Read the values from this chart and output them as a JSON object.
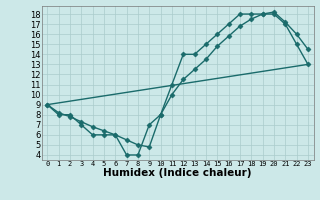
{
  "xlabel": "Humidex (Indice chaleur)",
  "bg_color": "#cce8e8",
  "grid_color": "#aacccc",
  "line_color": "#1a6b6b",
  "xlim": [
    -0.5,
    23.5
  ],
  "ylim": [
    3.5,
    18.8
  ],
  "xticks": [
    0,
    1,
    2,
    3,
    4,
    5,
    6,
    7,
    8,
    9,
    10,
    11,
    12,
    13,
    14,
    15,
    16,
    17,
    18,
    19,
    20,
    21,
    22,
    23
  ],
  "yticks": [
    4,
    5,
    6,
    7,
    8,
    9,
    10,
    11,
    12,
    13,
    14,
    15,
    16,
    17,
    18
  ],
  "curve1_x": [
    0,
    1,
    2,
    3,
    4,
    5,
    6,
    7,
    8,
    9,
    10,
    11,
    12,
    13,
    14,
    15,
    16,
    17,
    18,
    19,
    20,
    21,
    22,
    23
  ],
  "curve1_y": [
    9,
    8,
    8,
    7,
    6,
    6,
    6,
    4,
    4,
    7,
    8,
    11,
    14,
    14,
    15,
    16,
    17,
    18,
    18,
    18,
    18,
    17,
    15,
    13
  ],
  "curve2_x": [
    0,
    1,
    2,
    3,
    4,
    5,
    6,
    7,
    8,
    9,
    10,
    11,
    12,
    13,
    14,
    15,
    16,
    17,
    18,
    19,
    20,
    21,
    22,
    23
  ],
  "curve2_y": [
    9,
    8.2,
    7.8,
    7.3,
    6.8,
    6.4,
    6.0,
    5.5,
    5.0,
    4.8,
    8.0,
    10.0,
    11.5,
    12.5,
    13.5,
    14.8,
    15.8,
    16.8,
    17.5,
    18.0,
    18.2,
    17.2,
    16.0,
    14.5
  ],
  "curve3_x": [
    0,
    23
  ],
  "curve3_y": [
    9,
    13
  ],
  "marker": "D",
  "markersize": 2.5,
  "linewidth": 1.0,
  "xlabel_fontsize": 7.5,
  "xtick_fontsize": 5.0,
  "ytick_fontsize": 6.0
}
